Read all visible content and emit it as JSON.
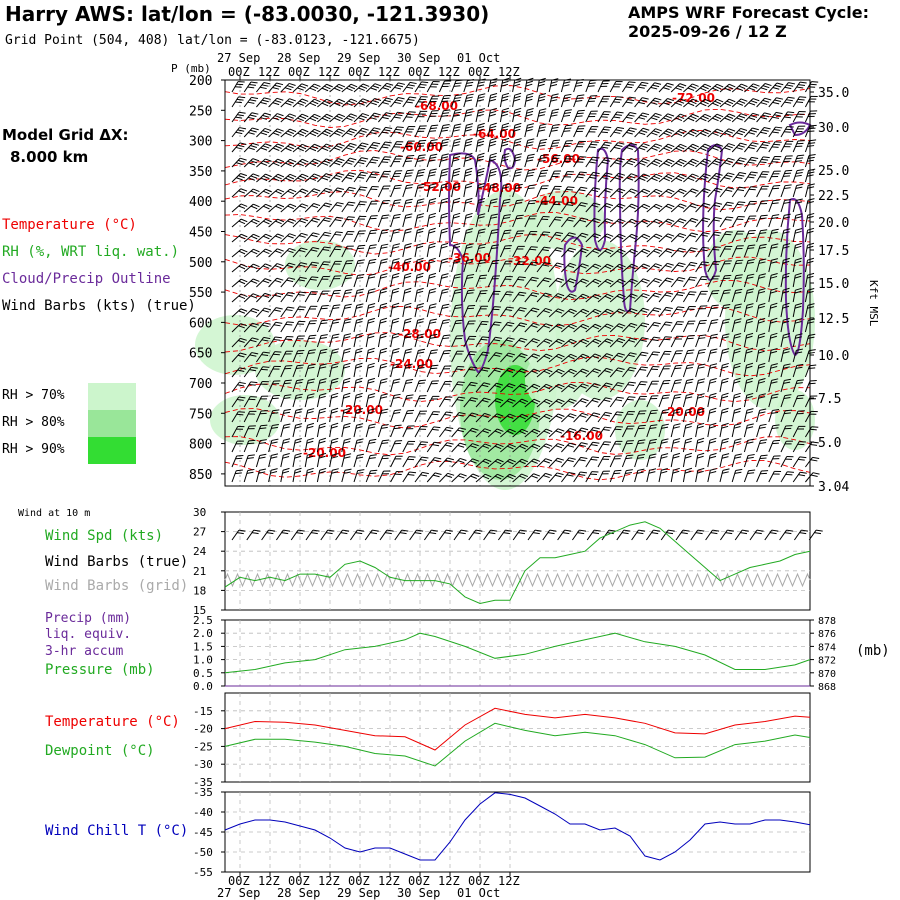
{
  "header": {
    "title": "Harry AWS:  lat/lon = (-83.0030, -121.3930)",
    "subtitle": "Grid Point (504, 408) lat/lon = (-83.0123, -121.6675)",
    "cycle_line1": "AMPS WRF Forecast Cycle:",
    "cycle_line2": "2025-09-26 / 12  Z"
  },
  "grid": {
    "label": "Model Grid ΔX:",
    "value": "8.000 km"
  },
  "legend": {
    "temperature": "Temperature (°C)",
    "rh": "RH (%, WRT liq. wat.)",
    "cloud": "Cloud/Precip Outline",
    "wind": "Wind Barbs (kts) (true)",
    "rh70": "RH > 70%",
    "rh80": "RH > 80%",
    "rh90": "RH > 90%"
  },
  "colors": {
    "temperature": "#ee0000",
    "rh": "#22aa22",
    "cloud": "#6a2a9a",
    "wind": "#000000",
    "rh70": "#ccf5cc",
    "rh80": "#99e699",
    "rh90": "#33dd33",
    "windchill": "#0000bb",
    "grid_barbs": "#aaaaaa"
  },
  "chart_data": [
    {
      "type": "heatmap",
      "name": "Vertical cross-section",
      "ylabel": "P (mb)",
      "y2label": "Kft MSL",
      "ylim": [
        200,
        870
      ],
      "y_ticks": [
        "200",
        "250",
        "300",
        "350",
        "400",
        "450",
        "500",
        "550",
        "600",
        "650",
        "700",
        "750",
        "800",
        "850"
      ],
      "y2_ticks": [
        "35.0",
        "30.0",
        "25.0",
        "22.5",
        "20.0",
        "17.5",
        "15.0",
        "12.5",
        "10.0",
        "7.5",
        "5.0",
        "3.04"
      ],
      "x_ticks": [
        "27 Sep 00Z",
        "12Z",
        "28 Sep 00Z",
        "12Z",
        "29 Sep 00Z",
        "12Z",
        "30 Sep 00Z",
        "12Z",
        "01 Oct 00Z",
        "12Z"
      ],
      "date_labels": [
        "27 Sep",
        "28 Sep",
        "29 Sep",
        "30 Sep",
        "01 Oct"
      ],
      "hour_labels": [
        "00Z",
        "12Z",
        "00Z",
        "12Z",
        "00Z",
        "12Z",
        "00Z",
        "12Z",
        "00Z",
        "12Z"
      ],
      "temperature_labels": [
        "-68.00",
        "-64.00",
        "-72.00",
        "-60.00",
        "-56.00",
        "-52.00",
        "-48.00",
        "-44.00",
        "-40.00",
        "-36.00",
        "-32.00",
        "-28.00",
        "-24.00",
        "-20.00",
        "-20.00",
        "-16.00",
        "-20.00"
      ]
    },
    {
      "type": "line",
      "name": "Wind at 10 m",
      "title": "Wind at 10 m",
      "series_labels": [
        "Wind Spd (kts)",
        "Wind Barbs (true)",
        "Wind Barbs (grid)"
      ],
      "ylim": [
        15,
        30
      ],
      "y_ticks": [
        "30",
        "27",
        "24",
        "21",
        "18",
        "15"
      ],
      "x": [
        0,
        6,
        12,
        18,
        24,
        30,
        36,
        42,
        48,
        54,
        60,
        66,
        72,
        78,
        84,
        90,
        96,
        102,
        108,
        114,
        120,
        126,
        132,
        138,
        144,
        150,
        156,
        162,
        168,
        174,
        180,
        186,
        192,
        198,
        204,
        210,
        216,
        222,
        228,
        234
      ],
      "values": [
        18.5,
        20,
        19.5,
        20,
        19.5,
        20.5,
        20.5,
        20,
        22,
        22.5,
        21.5,
        20,
        19.5,
        19.5,
        19.5,
        19,
        17,
        16,
        16.5,
        16.5,
        21,
        23,
        23,
        23.5,
        24,
        26,
        27,
        28,
        28.5,
        27.5,
        25.5,
        23.5,
        21.5,
        19.5,
        20.5,
        21.5,
        22,
        22.5,
        23.5,
        24
      ]
    },
    {
      "type": "line",
      "name": "Precip / Pressure",
      "series_labels": [
        "Precip (mm)",
        "liq. equiv.",
        "3-hr accum",
        "Pressure (mb)"
      ],
      "ylim": [
        0,
        2.5
      ],
      "y_ticks": [
        "2.5",
        "2.0",
        "1.5",
        "1.0",
        "0.5",
        "0.0"
      ],
      "y2lim": [
        868,
        878
      ],
      "y2_ticks": [
        "878",
        "876",
        "874",
        "872",
        "870",
        "868"
      ],
      "y2label": "(mb)",
      "series": [
        {
          "name": "Pressure (mb)",
          "x": [
            0,
            12,
            24,
            36,
            48,
            60,
            72,
            78,
            84,
            96,
            108,
            120,
            132,
            144,
            156,
            168,
            180,
            192,
            204,
            216,
            228,
            234
          ],
          "values": [
            870,
            870.5,
            871.5,
            872,
            873.5,
            874,
            875,
            876,
            875.5,
            874,
            872.2,
            872.8,
            874,
            875,
            876,
            874.7,
            874,
            872.7,
            870.5,
            870.5,
            871.2,
            872
          ]
        },
        {
          "name": "Precip (mm)",
          "x": [
            0,
            234
          ],
          "values": [
            0,
            0
          ]
        }
      ]
    },
    {
      "type": "line",
      "name": "Temperature / Dewpoint",
      "series_labels": [
        "Temperature (°C)",
        "Dewpoint (°C)"
      ],
      "ylim": [
        -35,
        -10
      ],
      "y_ticks": [
        "-15",
        "-20",
        "-25",
        "-30",
        "-35"
      ],
      "series": [
        {
          "name": "Temperature (°C)",
          "x": [
            0,
            12,
            24,
            36,
            48,
            60,
            72,
            84,
            96,
            108,
            120,
            132,
            144,
            156,
            168,
            180,
            192,
            204,
            216,
            228,
            234
          ],
          "values": [
            -20,
            -18,
            -18.2,
            -19,
            -20.5,
            -22,
            -22.3,
            -26,
            -19,
            -14.3,
            -16,
            -17,
            -16,
            -17,
            -18.5,
            -21.2,
            -21.5,
            -19,
            -18,
            -16.5,
            -16.8
          ]
        },
        {
          "name": "Dewpoint (°C)",
          "x": [
            0,
            12,
            24,
            36,
            48,
            60,
            72,
            84,
            96,
            108,
            120,
            132,
            144,
            156,
            168,
            180,
            192,
            204,
            216,
            228,
            234
          ],
          "values": [
            -25,
            -23,
            -23,
            -23.8,
            -25,
            -27,
            -27.7,
            -30.5,
            -23.5,
            -18.5,
            -20.5,
            -22,
            -21,
            -22,
            -24.5,
            -28.2,
            -28,
            -24.5,
            -23.5,
            -21.8,
            -22.5
          ]
        }
      ]
    },
    {
      "type": "line",
      "name": "Wind Chill",
      "series_labels": [
        "Wind Chill T (°C)"
      ],
      "ylim": [
        -55,
        -35
      ],
      "y_ticks": [
        "-35",
        "-40",
        "-45",
        "-50",
        "-55"
      ],
      "x_ticks": [
        "27 Sep 00Z",
        "12Z",
        "28 Sep 00Z",
        "12Z",
        "29 Sep 00Z",
        "12Z",
        "30 Sep 00Z",
        "12Z",
        "01 Oct 00Z",
        "12Z"
      ],
      "x": [
        0,
        6,
        12,
        18,
        24,
        30,
        36,
        42,
        48,
        54,
        60,
        66,
        72,
        78,
        84,
        90,
        96,
        102,
        108,
        114,
        120,
        126,
        132,
        138,
        144,
        150,
        156,
        162,
        168,
        174,
        180,
        186,
        192,
        198,
        204,
        210,
        216,
        222,
        228,
        234
      ],
      "values": [
        -44.5,
        -43,
        -42,
        -42,
        -42.5,
        -43.5,
        -44.5,
        -46.5,
        -49,
        -50,
        -49,
        -49,
        -50.5,
        -52,
        -52,
        -47.5,
        -42,
        -38,
        -35.2,
        -35.6,
        -36.5,
        -38.5,
        -40.5,
        -43,
        -43,
        -44.5,
        -44,
        -46,
        -51,
        -52,
        -50,
        -47,
        -43,
        -42.5,
        -43,
        -43,
        -42,
        -42,
        -42.5,
        -43.2
      ]
    }
  ]
}
